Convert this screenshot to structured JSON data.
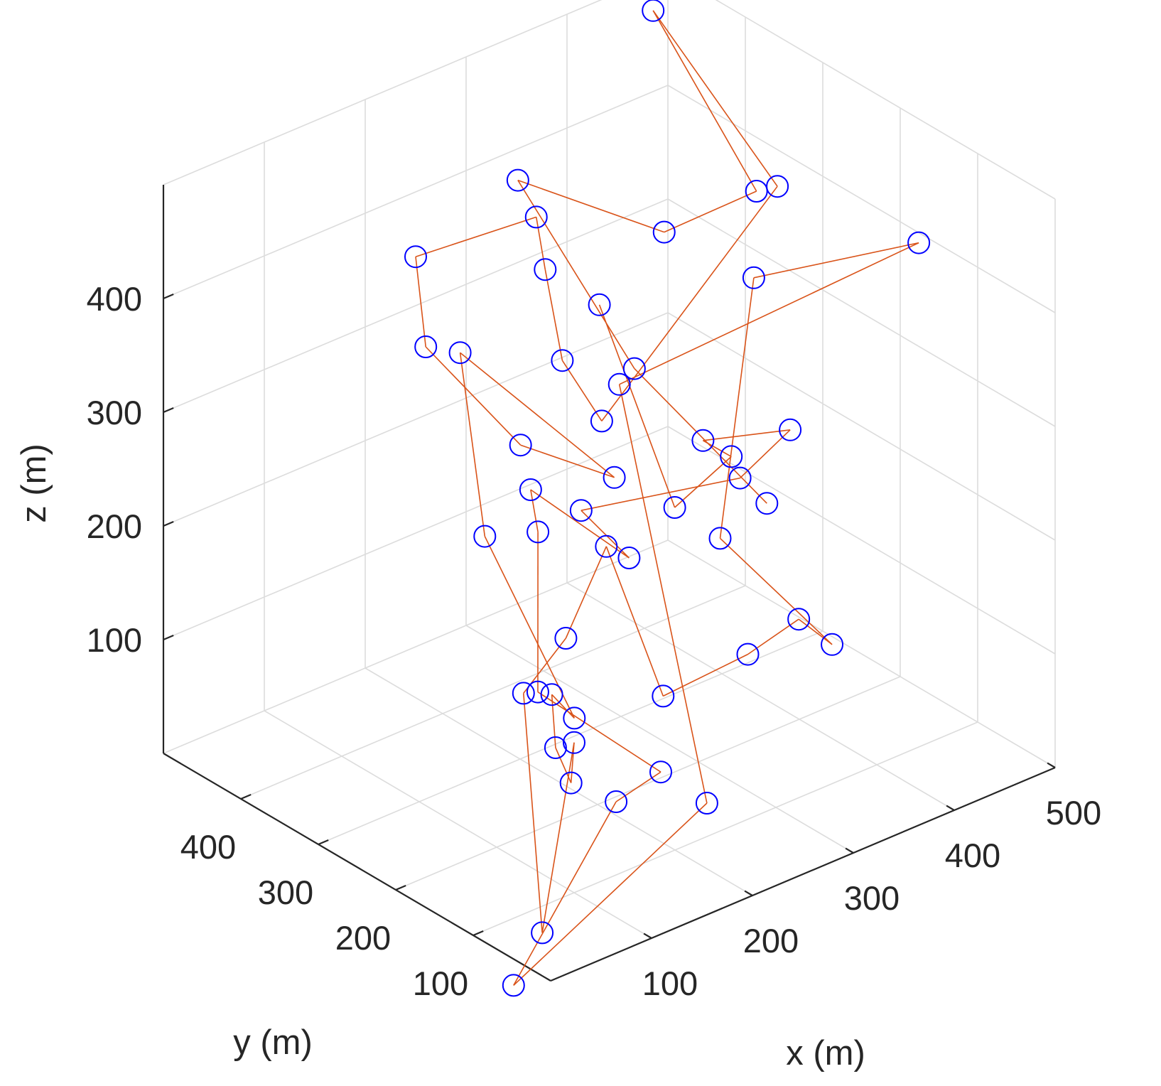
{
  "chart_data": {
    "type": "line3d",
    "xlabel": "x (m)",
    "ylabel": "y (m)",
    "zlabel": "z (m)",
    "xlim": [
      0,
      500
    ],
    "ylim": [
      0,
      500
    ],
    "zlim": [
      0,
      500
    ],
    "x_ticks": [
      "100",
      "200",
      "300",
      "400",
      "500"
    ],
    "y_ticks": [
      "100",
      "200",
      "300",
      "400"
    ],
    "z_ticks": [
      "100",
      "200",
      "300",
      "400"
    ],
    "grid": true,
    "marker": "circle",
    "marker_color": "#0000ff",
    "line_color": "#d95319",
    "path": [
      {
        "x": 245,
        "y": 40,
        "z": 312
      },
      {
        "x": 225,
        "y": 185,
        "z": 380
      },
      {
        "x": 240,
        "y": 355,
        "z": 472
      },
      {
        "x": 385,
        "y": 355,
        "z": 372
      },
      {
        "x": 465,
        "y": 340,
        "z": 384
      },
      {
        "x": 470,
        "y": 480,
        "z": 485
      },
      {
        "x": 455,
        "y": 300,
        "z": 408
      },
      {
        "x": 350,
        "y": 390,
        "z": 205
      },
      {
        "x": 380,
        "y": 480,
        "z": 211
      },
      {
        "x": 340,
        "y": 450,
        "z": 318
      },
      {
        "x": 335,
        "y": 455,
        "z": 364
      },
      {
        "x": 250,
        "y": 500,
        "z": 343
      },
      {
        "x": 260,
        "y": 500,
        "z": 260
      },
      {
        "x": 235,
        "y": 345,
        "z": 245
      },
      {
        "x": 255,
        "y": 250,
        "z": 247
      },
      {
        "x": 225,
        "y": 410,
        "z": 304
      },
      {
        "x": 165,
        "y": 300,
        "z": 209
      },
      {
        "x": 200,
        "y": 230,
        "z": 64
      },
      {
        "x": 170,
        "y": 220,
        "z": 100
      },
      {
        "x": 120,
        "y": 150,
        "z": 100
      },
      {
        "x": 120,
        "y": 130,
        "z": 77
      },
      {
        "x": 100,
        "y": 100,
        "z": 132
      },
      {
        "x": 30,
        "y": 50,
        "z": 11
      },
      {
        "x": 165,
        "y": 250,
        "z": 91
      },
      {
        "x": 230,
        "y": 280,
        "z": 103
      },
      {
        "x": 320,
        "y": 345,
        "z": 124
      },
      {
        "x": 265,
        "y": 200,
        "z": 71
      },
      {
        "x": 395,
        "y": 260,
        "z": 35
      },
      {
        "x": 480,
        "y": 305,
        "z": 16
      },
      {
        "x": 490,
        "y": 275,
        "z": 2
      },
      {
        "x": 475,
        "y": 400,
        "z": 51
      },
      {
        "x": 470,
        "y": 350,
        "z": 302
      },
      {
        "x": 480,
        "y": 150,
        "z": 409
      },
      {
        "x": 260,
        "y": 250,
        "z": 327
      },
      {
        "x": 270,
        "y": 150,
        "z": -5
      },
      {
        "x": 40,
        "y": 100,
        "z": -59
      },
      {
        "x": 180,
        "y": 150,
        "z": 30
      },
      {
        "x": 255,
        "y": 190,
        "z": 12
      },
      {
        "x": 160,
        "y": 225,
        "z": 104
      },
      {
        "x": 210,
        "y": 290,
        "z": 200
      },
      {
        "x": 245,
        "y": 345,
        "z": 202
      },
      {
        "x": 285,
        "y": 270,
        "z": 157
      },
      {
        "x": 295,
        "y": 345,
        "z": 165
      },
      {
        "x": 395,
        "y": 270,
        "z": 186
      },
      {
        "x": 460,
        "y": 290,
        "z": 196
      },
      {
        "x": 435,
        "y": 370,
        "z": 164
      },
      {
        "x": 440,
        "y": 340,
        "z": 160
      },
      {
        "x": 430,
        "y": 400,
        "z": 95
      },
      {
        "x": 340,
        "y": 380,
        "z": 315
      }
    ]
  }
}
